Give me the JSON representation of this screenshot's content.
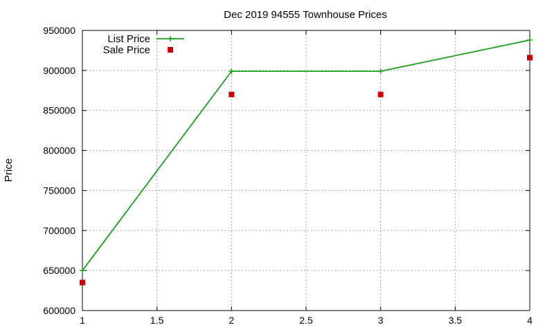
{
  "chart_data": {
    "type": "line",
    "title": "Dec 2019 94555 Townhouse Prices",
    "xlabel": "",
    "ylabel": "Price",
    "xlim": [
      1,
      4
    ],
    "ylim": [
      600000,
      950000
    ],
    "xticks": [
      1,
      1.5,
      2,
      2.5,
      3,
      3.5,
      4
    ],
    "xtick_labels": [
      "1",
      "1.5",
      "2",
      "2.5",
      "3",
      "3.5",
      "4"
    ],
    "yticks": [
      600000,
      650000,
      700000,
      750000,
      800000,
      850000,
      900000,
      950000
    ],
    "ytick_labels": [
      "600000",
      "650000",
      "700000",
      "750000",
      "800000",
      "850000",
      "900000",
      "950000"
    ],
    "grid": true,
    "legend_position": "top-left",
    "series": [
      {
        "name": "List Price",
        "style": "linespoints",
        "marker": "plus",
        "color": "#1aa01a",
        "x": [
          1,
          2,
          3,
          4
        ],
        "y": [
          650000,
          899000,
          899000,
          938000
        ]
      },
      {
        "name": "Sale Price",
        "style": "points",
        "marker": "square",
        "color": "#cc0000",
        "x": [
          1,
          2,
          3,
          4
        ],
        "y": [
          635000,
          870000,
          870000,
          916000
        ]
      }
    ]
  }
}
